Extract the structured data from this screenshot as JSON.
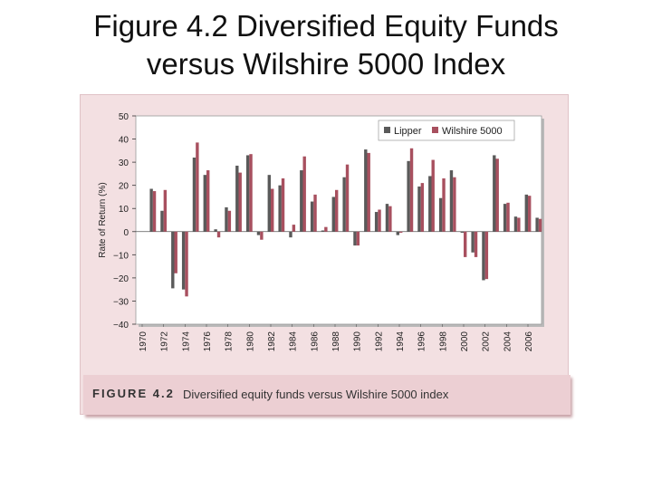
{
  "slide": {
    "title_line1": "Figure 4.2 Diversified Equity Funds",
    "title_line2": "versus Wilshire 5000 Index"
  },
  "figure": {
    "label": "FIGURE 4.2",
    "caption": "Diversified equity funds versus Wilshire 5000 index"
  },
  "colors": {
    "lipper": "#5a5a5a",
    "wilshire": "#a8505f",
    "plot_bg": "#ffffff",
    "panel_bg": "#f3e0e2"
  },
  "chart_data": {
    "type": "bar",
    "ylabel": "Rate of Return (%)",
    "xlabel": "",
    "ylim": [
      -40,
      50
    ],
    "yticks": [
      50,
      40,
      30,
      20,
      10,
      0,
      -10,
      -20,
      -30,
      -40
    ],
    "ytick_labels": [
      "50",
      "40",
      "30",
      "20",
      "10",
      "0",
      "−10",
      "−20",
      "−30",
      "−40"
    ],
    "xtick_labels": [
      "1970",
      "1972",
      "1974",
      "1976",
      "1978",
      "1980",
      "1982",
      "1984",
      "1986",
      "1988",
      "1990",
      "1992",
      "1994",
      "1996",
      "1998",
      "2000",
      "2002",
      "2004",
      "2006"
    ],
    "legend_position": "top-right",
    "categories": [
      1970,
      1971,
      1972,
      1973,
      1974,
      1975,
      1976,
      1977,
      1978,
      1979,
      1980,
      1981,
      1982,
      1983,
      1984,
      1985,
      1986,
      1987,
      1988,
      1989,
      1990,
      1991,
      1992,
      1993,
      1994,
      1995,
      1996,
      1997,
      1998,
      1999,
      2000,
      2001,
      2002,
      2003,
      2004,
      2005,
      2006
    ],
    "series": [
      {
        "name": "Lipper",
        "values": [
          0,
          18.5,
          9,
          -24.5,
          -25,
          32,
          24.5,
          1,
          10.5,
          28.5,
          33,
          -1.5,
          24.5,
          20,
          -2.5,
          26.5,
          13,
          0.5,
          15,
          23.5,
          -6,
          35.5,
          8.5,
          12,
          -1.5,
          30.5,
          19.5,
          24,
          14.5,
          26.5,
          -0.5,
          -9,
          -21,
          33,
          12,
          6.5,
          16
        ]
      },
      {
        "name": "Wilshire 5000",
        "values": [
          0,
          17.5,
          18,
          -18,
          -28,
          38.5,
          26.5,
          -2.5,
          9,
          25.5,
          33.5,
          -3.5,
          18.5,
          23,
          3,
          32.5,
          16,
          2,
          18,
          29,
          -6,
          34,
          9.5,
          11,
          -0.5,
          36,
          21,
          31,
          23,
          23.5,
          -11,
          -11,
          -20.5,
          31.5,
          12.5,
          6,
          15.5
        ]
      }
    ],
    "extra_values": {
      "2007_lipper": 6,
      "2007_wilshire": 5.5
    }
  }
}
